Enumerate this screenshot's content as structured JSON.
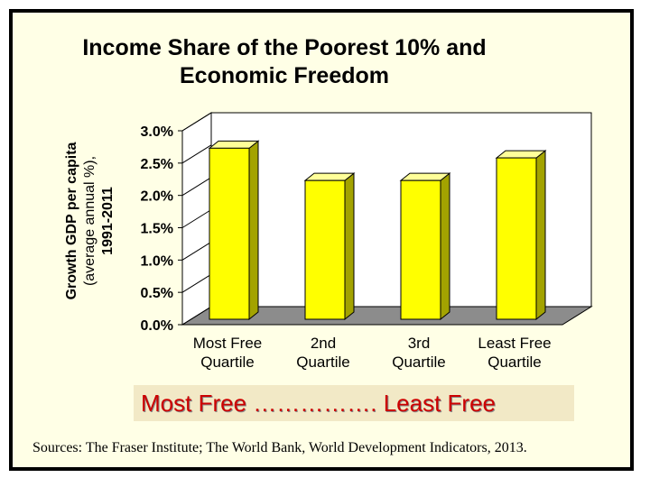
{
  "chart_data": {
    "type": "bar",
    "title": "Income Share of the Poorest 10% and Economic Freedom",
    "title_lines": [
      "Income Share of the Poorest 10% and",
      "Economic Freedom"
    ],
    "ylabel_lines": [
      "Growth GDP per capita",
      "(average annual %),",
      "1991-2011"
    ],
    "categories": [
      {
        "line1": "Most Free",
        "line2": "Quartile"
      },
      {
        "line1": "2nd",
        "line2": "Quartile"
      },
      {
        "line1": "3rd",
        "line2": "Quartile"
      },
      {
        "line1": "Least Free",
        "line2": "Quartile"
      }
    ],
    "values": [
      2.8,
      2.3,
      2.3,
      2.65
    ],
    "ylim": [
      0,
      3.0
    ],
    "yticks": [
      "0.0%",
      "0.5%",
      "1.0%",
      "1.5%",
      "2.0%",
      "2.5%",
      "3.0%"
    ],
    "grid": false,
    "legend": "none"
  },
  "banner": {
    "text": "Most Free ……………. Least Free"
  },
  "sources": "Sources: The Fraser Institute; The World Bank, World Development Indicators, 2013.",
  "colors": {
    "bar_front": "#ffff00",
    "bar_side": "#a3a300",
    "bar_top": "#ffff99",
    "floor": "#8c8c8c",
    "banner_bg": "#f2e9c6",
    "banner_text": "#cc0000",
    "slide_bg": "#ffffe6"
  }
}
